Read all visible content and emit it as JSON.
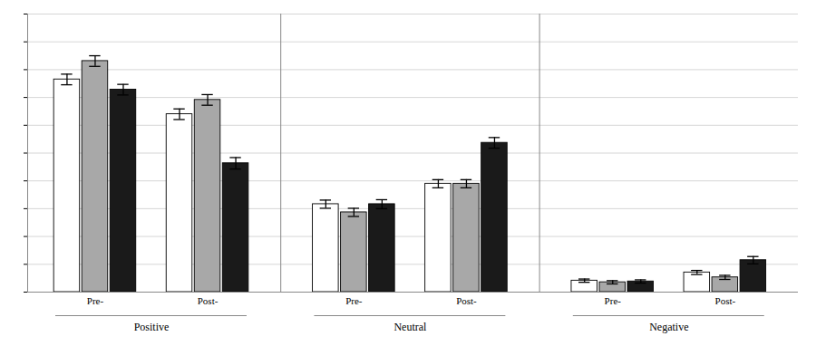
{
  "chart_data": {
    "type": "bar",
    "categories": [
      "Pre-",
      "Post-",
      "Pre-",
      "Post-",
      "Pre-",
      "Post-"
    ],
    "group_labels": [
      "Positive",
      "Neutral",
      "Negative"
    ],
    "series": [
      {
        "color": "#ffffff",
        "values": [
          0.52,
          0.435,
          0.215,
          0.265,
          0.028,
          0.048
        ],
        "errors": [
          0.013,
          0.013,
          0.01,
          0.01,
          0.004,
          0.005
        ]
      },
      {
        "color": "#a8a8a8",
        "values": [
          0.565,
          0.47,
          0.195,
          0.265,
          0.024,
          0.036
        ],
        "errors": [
          0.013,
          0.013,
          0.01,
          0.01,
          0.004,
          0.005
        ]
      },
      {
        "color": "#1a1a1a",
        "values": [
          0.495,
          0.315,
          0.215,
          0.365,
          0.026,
          0.078
        ],
        "errors": [
          0.013,
          0.014,
          0.011,
          0.013,
          0.004,
          0.009
        ]
      }
    ],
    "ylim": [
      0,
      0.68
    ],
    "yticks": [
      0,
      0.068,
      0.136,
      0.204,
      0.272,
      0.34,
      0.408,
      0.476,
      0.544,
      0.612,
      0.68
    ],
    "grid": true,
    "tick_labels": "x"
  }
}
